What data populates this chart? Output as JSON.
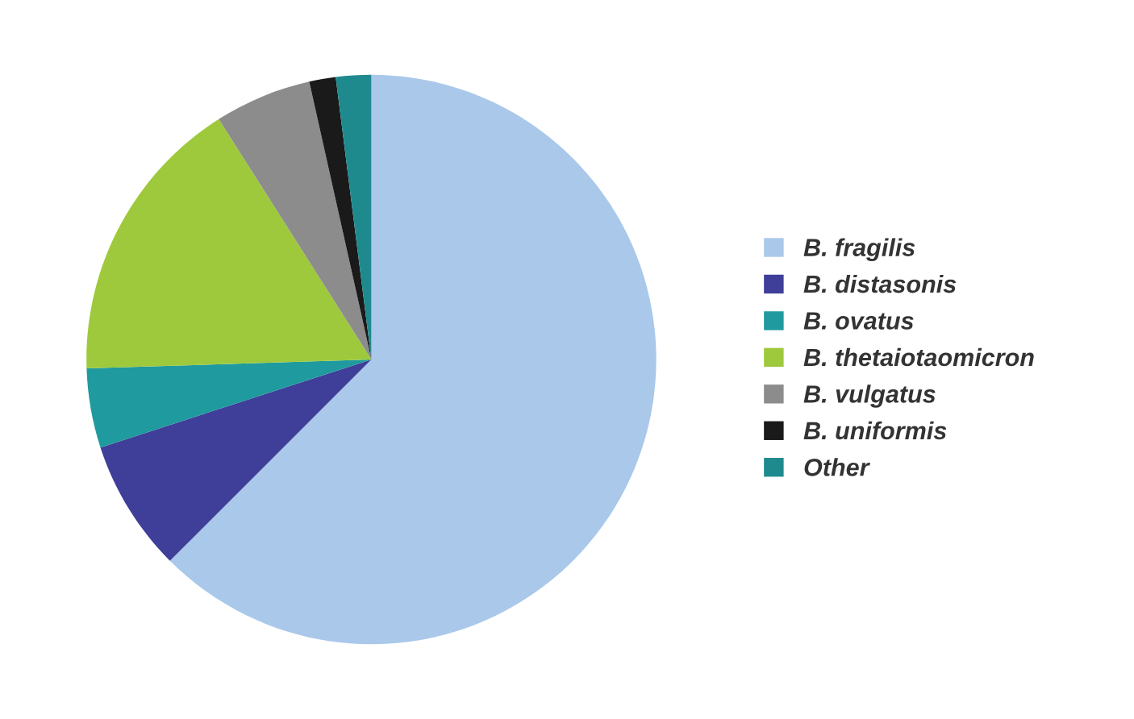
{
  "chart_data": {
    "type": "pie",
    "categories": [
      "B. fragilis",
      "B. distasonis",
      "B. ovatus",
      "B. thetaiotaomicron",
      "B. vulgatus",
      "B. uniformis",
      "Other"
    ],
    "values": [
      62.5,
      7.5,
      4.5,
      16.5,
      5.5,
      1.5,
      2
    ],
    "colors": [
      "#a9c8ea",
      "#3f3f9a",
      "#1f9a9e",
      "#9ec93c",
      "#8c8c8c",
      "#1a1a1a",
      "#1f8a8e"
    ],
    "legend": "right"
  }
}
